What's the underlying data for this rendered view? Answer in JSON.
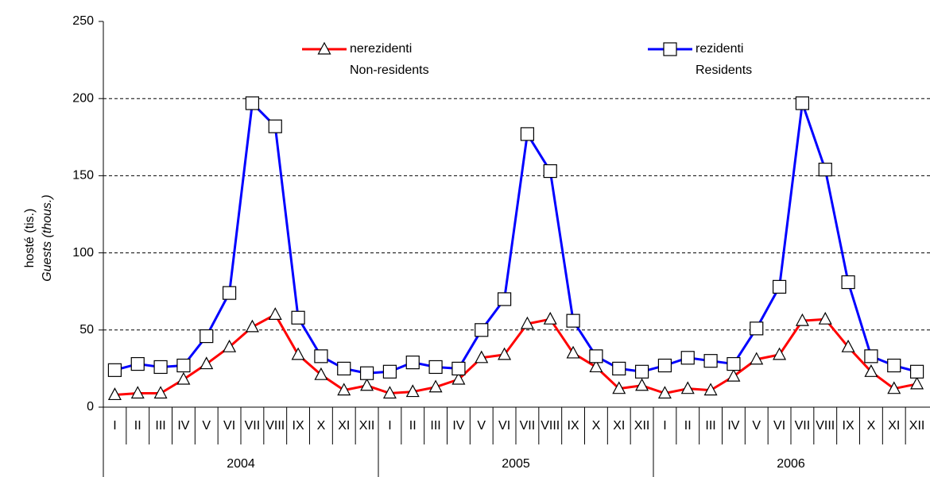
{
  "chart_data": {
    "type": "line",
    "y_label": "hosté (tis.)",
    "y_label_en": "Guests (thous.)",
    "categories": [
      "I",
      "II",
      "III",
      "IV",
      "V",
      "VI",
      "VII",
      "VIII",
      "IX",
      "X",
      "XI",
      "XII",
      "I",
      "II",
      "III",
      "IV",
      "V",
      "VI",
      "VII",
      "VIII",
      "IX",
      "X",
      "XI",
      "XII",
      "I",
      "II",
      "III",
      "IV",
      "V",
      "VI",
      "VII",
      "VIII",
      "IX",
      "X",
      "XI",
      "XII"
    ],
    "years": [
      "2004",
      "2005",
      "2006"
    ],
    "series": [
      {
        "name": "nerezidenti",
        "name_en": "Non-residents",
        "color": "#ff0000",
        "marker": "triangle",
        "values": [
          8,
          9,
          9,
          18,
          28,
          39,
          52,
          60,
          34,
          21,
          11,
          14,
          9,
          10,
          13,
          18,
          32,
          34,
          54,
          57,
          35,
          26,
          12,
          14,
          9,
          12,
          11,
          20,
          31,
          34,
          56,
          57,
          39,
          23,
          12,
          15
        ]
      },
      {
        "name": "rezidenti",
        "name_en": "Residents",
        "color": "#0000ff",
        "marker": "square",
        "values": [
          24,
          28,
          26,
          27,
          46,
          74,
          197,
          182,
          58,
          33,
          25,
          22,
          23,
          29,
          26,
          25,
          50,
          70,
          177,
          153,
          56,
          33,
          25,
          23,
          27,
          32,
          30,
          28,
          51,
          78,
          197,
          154,
          81,
          33,
          27,
          23
        ]
      }
    ],
    "ylim": [
      0,
      250
    ],
    "yticks": [
      0,
      50,
      100,
      150,
      200,
      250
    ],
    "grid": true
  }
}
